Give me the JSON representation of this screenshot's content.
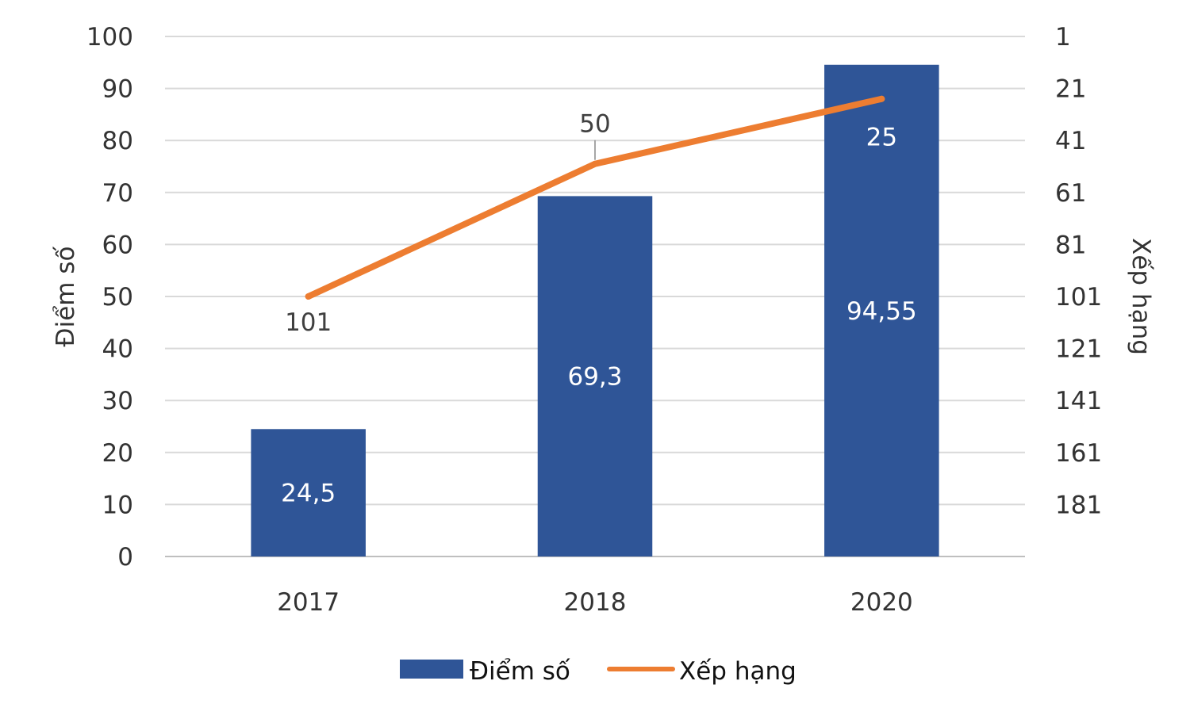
{
  "chart_data": {
    "type": "bar",
    "categories": [
      "2017",
      "2018",
      "2020"
    ],
    "series": [
      {
        "name": "Điểm số",
        "kind": "bar",
        "axis": "left",
        "values": [
          24.5,
          69.3,
          94.55
        ],
        "labels": [
          "24,5",
          "69,3",
          "94,55"
        ],
        "color": "#2f5597"
      },
      {
        "name": "Xếp hạng",
        "kind": "line",
        "axis": "right",
        "values": [
          101,
          50,
          25
        ],
        "labels": [
          "101",
          "50",
          "25"
        ],
        "color": "#ed7d31"
      }
    ],
    "y_left": {
      "label": "Điểm số",
      "range": [
        0,
        100
      ],
      "ticks": [
        "0",
        "10",
        "20",
        "30",
        "40",
        "50",
        "60",
        "70",
        "80",
        "90",
        "100"
      ]
    },
    "y_right": {
      "label": "Xếp hạng",
      "range": [
        1,
        201
      ],
      "reversed": true,
      "ticks": [
        "1",
        "21",
        "41",
        "61",
        "81",
        "101",
        "121",
        "141",
        "161",
        "181"
      ]
    },
    "grid": true,
    "legend_position": "bottom"
  }
}
